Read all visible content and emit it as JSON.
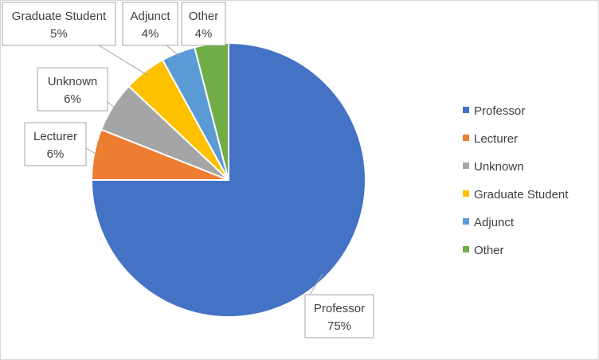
{
  "chart_data": {
    "type": "pie",
    "title": "",
    "legend_position": "right",
    "slices": [
      {
        "label": "Professor",
        "value": 75,
        "value_label": "75%",
        "color": "#4472C4"
      },
      {
        "label": "Lecturer",
        "value": 6,
        "value_label": "6%",
        "color": "#ED7D31"
      },
      {
        "label": "Unknown",
        "value": 6,
        "value_label": "6%",
        "color": "#A5A5A5"
      },
      {
        "label": "Graduate Student",
        "value": 5,
        "value_label": "5%",
        "color": "#FFC000"
      },
      {
        "label": "Adjunct",
        "value": 4,
        "value_label": "4%",
        "color": "#5B9BD5"
      },
      {
        "label": "Other",
        "value": 4,
        "value_label": "4%",
        "color": "#70AD47"
      }
    ]
  }
}
